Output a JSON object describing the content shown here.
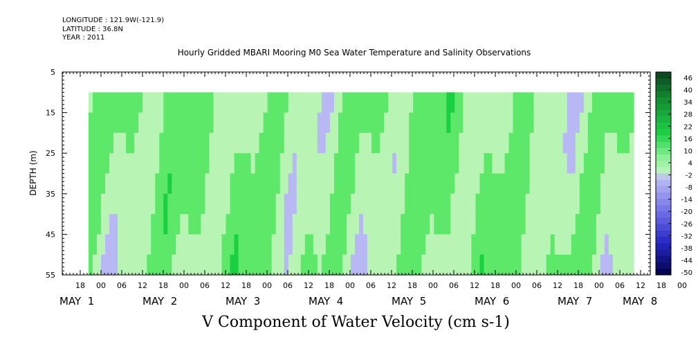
{
  "header": {
    "longitude": "LONGITUDE : 121.9W(-121.9)",
    "latitude": "LATITUDE : 36.8N",
    "year": "YEAR : 2011"
  },
  "chart_data": {
    "type": "heatmap",
    "title": "Hourly Gridded MBARI Mooring M0 Sea Water Temperature and Salinity Observations",
    "xlabel": "V Component of Water Velocity (cm s-1)",
    "ylabel": "DEPTH (m)",
    "ylim": [
      55,
      5
    ],
    "y_ticks": [
      5,
      15,
      25,
      35,
      45,
      55
    ],
    "data_depth_range": [
      10,
      55
    ],
    "x_hour_ticks": [
      "18",
      "00",
      "06",
      "12",
      "18",
      "00",
      "06",
      "12",
      "18",
      "00",
      "06",
      "12",
      "18",
      "00",
      "06",
      "12",
      "18",
      "00",
      "06",
      "12",
      "18",
      "00",
      "06",
      "12",
      "18",
      "00",
      "06",
      "12",
      "18",
      "00",
      "06",
      "12"
    ],
    "x_day_labels": [
      "MAY  1",
      "MAY  2",
      "MAY  3",
      "MAY  4",
      "MAY  5",
      "MAY  6",
      "MAY  7",
      "MAY  8"
    ],
    "colorbar_labels": [
      "46",
      "40",
      "34",
      "28",
      "22",
      "16",
      "10",
      "4",
      "-2",
      "-8",
      "-14",
      "-20",
      "-26",
      "-32",
      "-38",
      "-44",
      "-50"
    ],
    "colors": {
      "pos_light": "#b8f5b4",
      "pos_mid": "#5ee86a",
      "pos_strong": "#18d040",
      "neg_light": "#b8b8f4",
      "neg_mid": "#9a9ae8",
      "cb_top": "#0a4a1e",
      "cb_bottom": "#050555"
    }
  }
}
